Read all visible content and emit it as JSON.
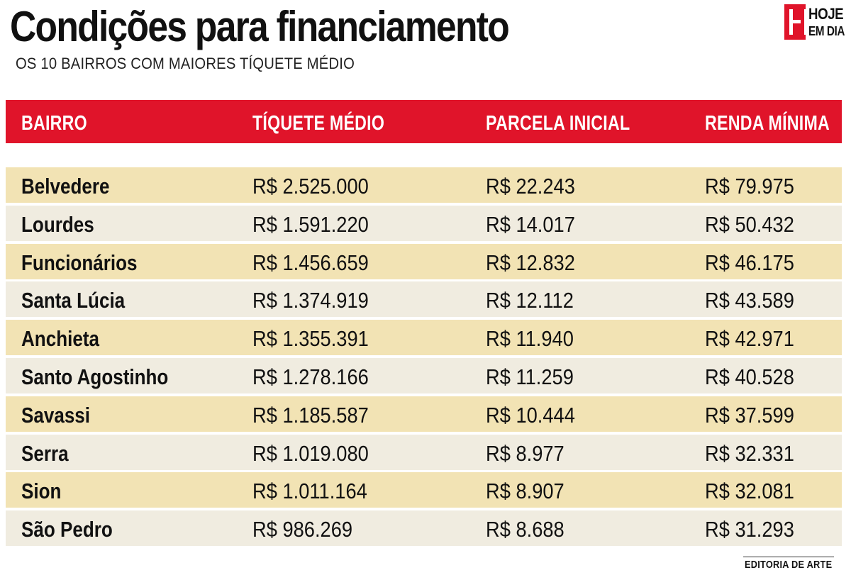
{
  "header": {
    "title": "Condições para financiamento",
    "subtitle": "OS 10 BAIRROS COM MAIORES TÍQUETE MÉDIO"
  },
  "logo": {
    "line1": "HOJE",
    "line2": "EM DIA",
    "brand_color": "#e0142a"
  },
  "colors": {
    "header_bg": "#e0142a",
    "row_odd": "#f2e3b4",
    "row_even": "#f0ece0"
  },
  "chart_data": {
    "type": "table",
    "title": "Condições para financiamento",
    "subtitle": "OS 10 BAIRROS COM MAIORES TÍQUETE MÉDIO",
    "columns": [
      "BAIRRO",
      "TÍQUETE MÉDIO",
      "PARCELA INICIAL",
      "RENDA MÍNIMA"
    ],
    "rows": [
      [
        "Belvedere",
        "R$ 2.525.000",
        "R$ 22.243",
        "R$ 79.975"
      ],
      [
        "Lourdes",
        "R$ 1.591.220",
        "R$ 14.017",
        "R$ 50.432"
      ],
      [
        "Funcionários",
        "R$ 1.456.659",
        "R$ 12.832",
        "R$ 46.175"
      ],
      [
        "Santa Lúcia",
        "R$ 1.374.919",
        "R$ 12.112",
        "R$ 43.589"
      ],
      [
        "Anchieta",
        "R$ 1.355.391",
        "R$ 11.940",
        "R$ 42.971"
      ],
      [
        "Santo Agostinho",
        "R$ 1.278.166",
        "R$ 11.259",
        "R$ 40.528"
      ],
      [
        "Savassi",
        "R$ 1.185.587",
        "R$ 10.444",
        "R$ 37.599"
      ],
      [
        "Serra",
        "R$ 1.019.080",
        "R$ 8.977",
        "R$ 32.331"
      ],
      [
        "Sion",
        "R$ 1.011.164",
        "R$ 8.907",
        "R$ 32.081"
      ],
      [
        "São Pedro",
        "R$ 986.269",
        "R$ 8.688",
        "R$ 31.293"
      ]
    ]
  },
  "footer": {
    "credit": "EDITORIA DE ARTE"
  }
}
